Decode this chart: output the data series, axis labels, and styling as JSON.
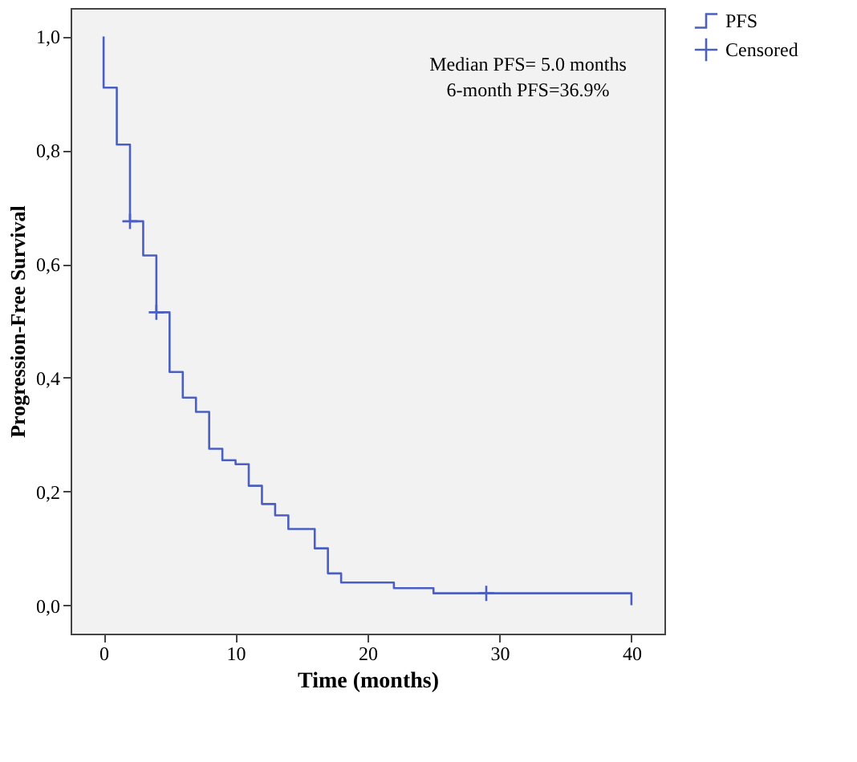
{
  "chart_data": {
    "type": "step",
    "xlabel": "Time (months)",
    "ylabel": "Progression-Free Survival",
    "xlim": [
      -2.5,
      42.5
    ],
    "xticks": [
      0,
      10,
      20,
      30,
      40
    ],
    "ylim": [
      -0.05,
      1.05
    ],
    "yticks": [
      {
        "value": 0,
        "label": "0,0"
      },
      {
        "value": 0.2,
        "label": "0,2"
      },
      {
        "value": 0.4,
        "label": "0,4"
      },
      {
        "value": 0.6,
        "label": "0,6"
      },
      {
        "value": 0.8,
        "label": "0,8"
      },
      {
        "value": 1,
        "label": "1,0"
      }
    ],
    "grid": false,
    "legend": "top right",
    "annotations": [
      "Median PFS= 5.0 months",
      "6-month PFS=36.9%"
    ],
    "series": [
      {
        "name": "PFS",
        "color": "#4a5fc1",
        "line_style": "solid",
        "marker": "none",
        "x": [
          0,
          0,
          1,
          2,
          3,
          4,
          5,
          6,
          7,
          8,
          9,
          10,
          11,
          12,
          13,
          14,
          16,
          17,
          18,
          22,
          25,
          40,
          40
        ],
        "values": [
          1.0,
          0.91,
          0.81,
          0.675,
          0.615,
          0.515,
          0.41,
          0.365,
          0.34,
          0.275,
          0.255,
          0.248,
          0.21,
          0.178,
          0.158,
          0.134,
          0.1,
          0.056,
          0.04,
          0.03,
          0.021,
          0.021,
          0.0
        ]
      },
      {
        "name": "Censored",
        "type": "scatter",
        "color": "#4a5fc1",
        "marker": "cross",
        "x": [
          2,
          4,
          29
        ],
        "values": [
          0.675,
          0.515,
          0.021
        ]
      }
    ]
  }
}
